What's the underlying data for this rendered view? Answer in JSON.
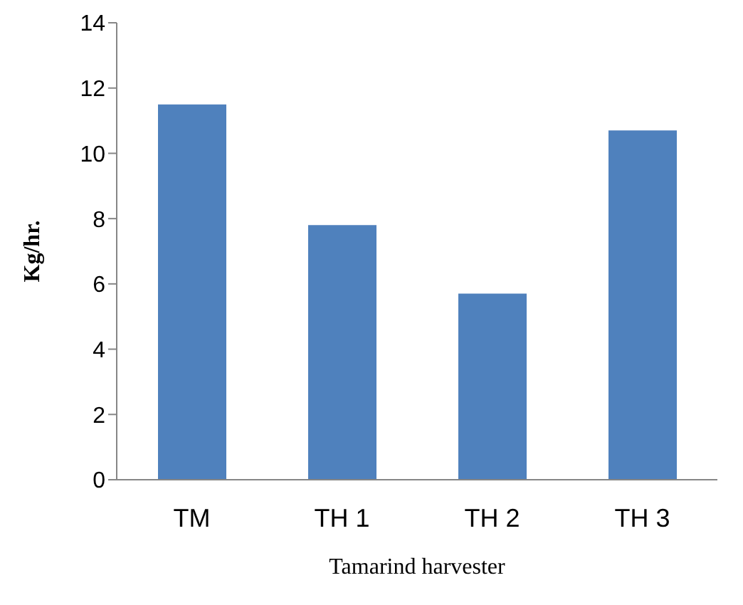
{
  "chart_data": {
    "type": "bar",
    "xlabel": "Tamarind harvester",
    "ylabel": "Kg/hr.",
    "categories": [
      "TM",
      "TH 1",
      "TH 2",
      "TH 3"
    ],
    "values": [
      11.5,
      7.8,
      5.7,
      10.7
    ],
    "color": "#4f81bd",
    "ylim": [
      0,
      14
    ],
    "yticks": [
      0,
      2,
      4,
      6,
      8,
      10,
      12,
      14
    ],
    "grid": false
  }
}
